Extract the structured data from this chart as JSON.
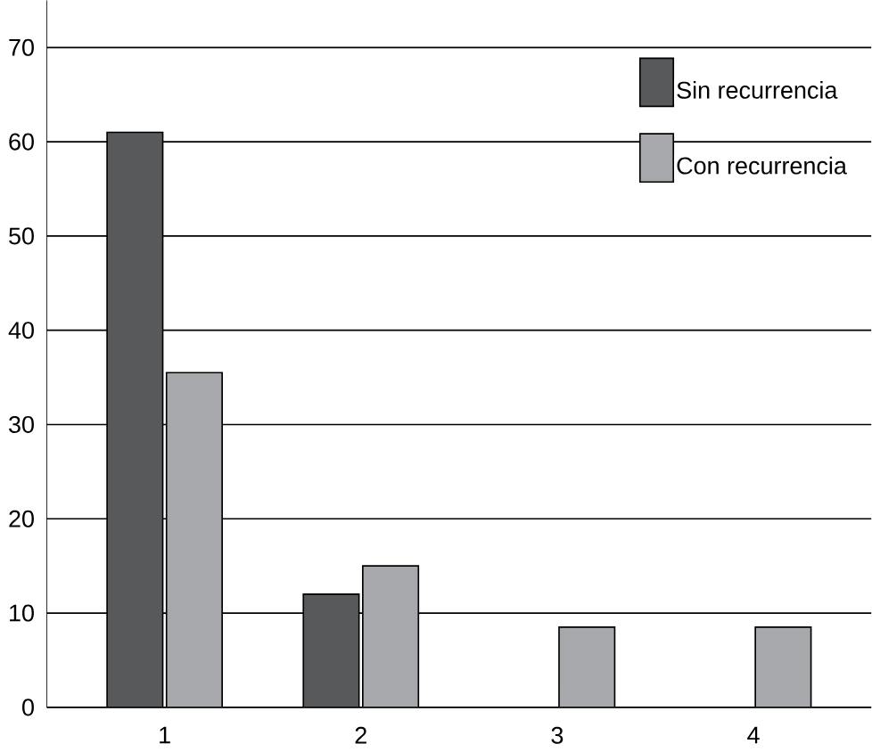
{
  "chart_data": {
    "type": "bar",
    "categories": [
      "1",
      "2",
      "3",
      "4"
    ],
    "series": [
      {
        "name": "Sin recurrencia",
        "color": "#58595b",
        "values": [
          61,
          12,
          null,
          null
        ]
      },
      {
        "name": "Con recurrencia",
        "color": "#a7a8ab",
        "values": [
          35.5,
          15,
          8.5,
          8.5
        ]
      }
    ],
    "ylim": [
      0,
      75
    ],
    "yticks": [
      0,
      10,
      20,
      30,
      40,
      50,
      60,
      70
    ],
    "grid": "y",
    "legend": "top right"
  }
}
